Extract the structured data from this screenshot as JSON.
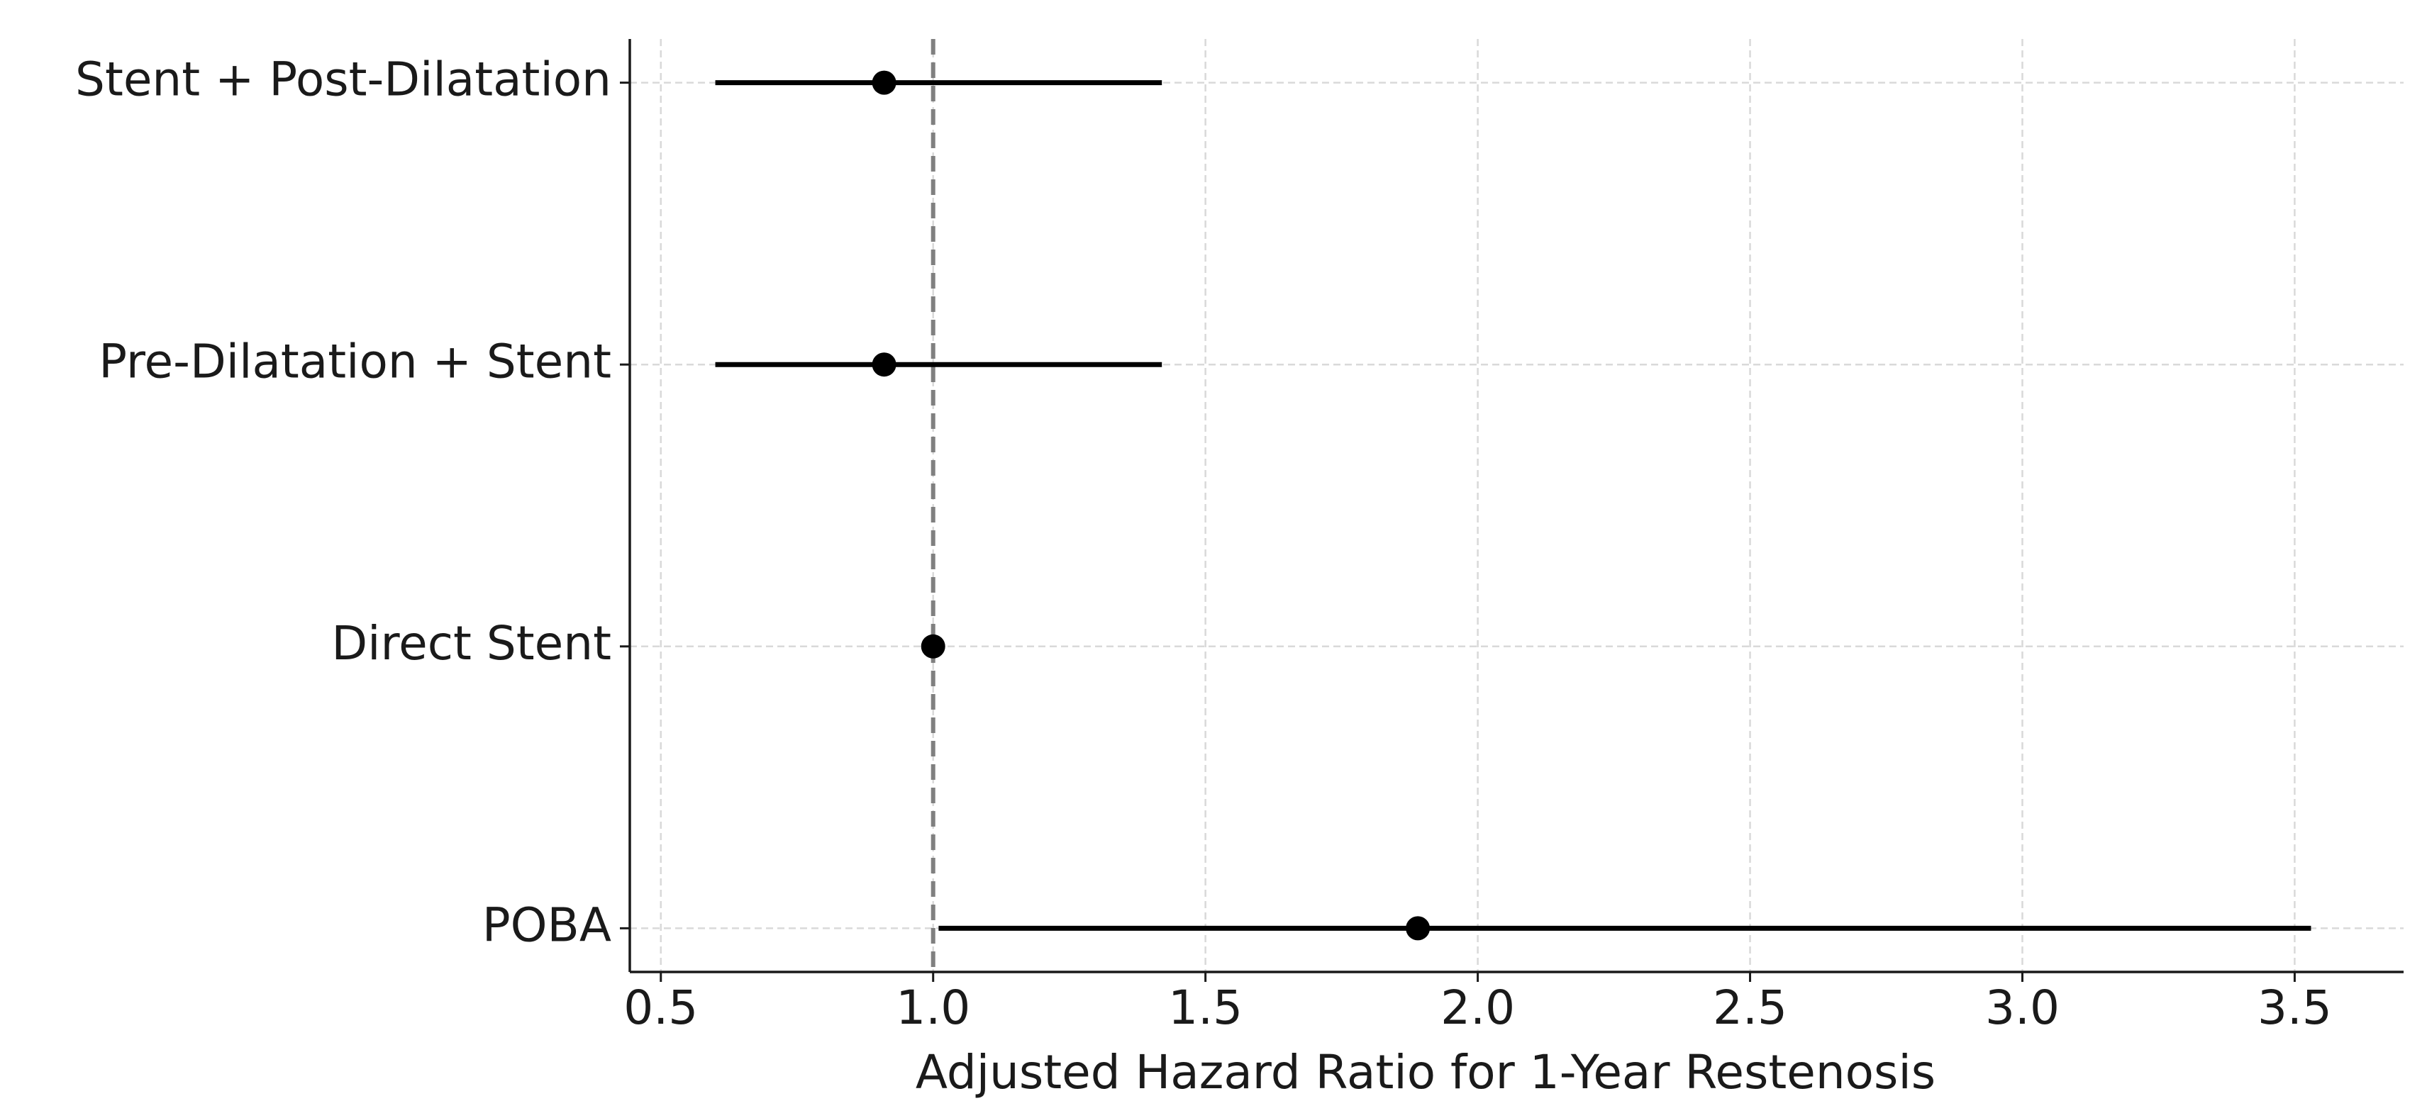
{
  "chart_data": {
    "type": "forest",
    "xlabel": "Adjusted Hazard Ratio for 1-Year Restenosis",
    "categories": [
      "Stent + Post-Dilatation",
      "Pre-Dilatation + Stent",
      "Direct Stent",
      "POBA"
    ],
    "values": [
      0.91,
      0.91,
      1.0,
      1.89
    ],
    "ci_lower": [
      0.6,
      0.6,
      1.0,
      1.01
    ],
    "ci_upper": [
      1.42,
      1.42,
      1.0,
      3.53
    ],
    "color": "#000000",
    "reference_line": 1,
    "reference_color": "#808080",
    "xlim": [
      0.443,
      3.7
    ],
    "xticks": [
      0.5,
      {
        "value": 1,
        "label": "1.0"
      },
      1.5,
      {
        "value": 2,
        "label": "2.0"
      },
      2.5,
      {
        "value": 3,
        "label": "3.0"
      },
      3.5
    ],
    "grid": true
  }
}
